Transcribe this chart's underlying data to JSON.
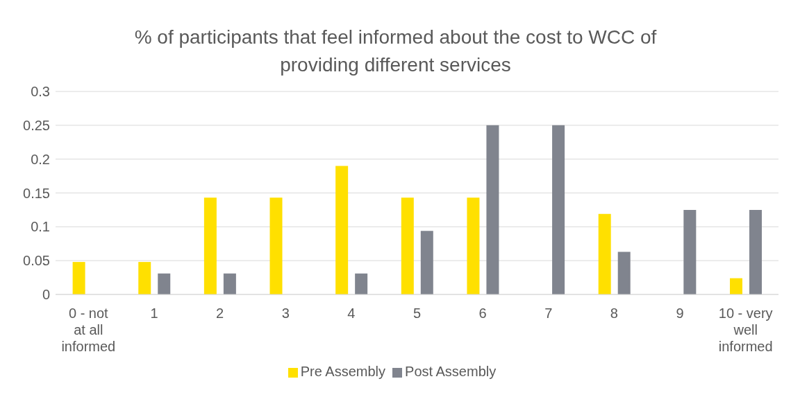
{
  "chart_data": {
    "type": "bar",
    "title": "% of participants that feel informed about the cost to WCC of providing different services",
    "categories": [
      "0 - not at all informed",
      "1",
      "2",
      "3",
      "4",
      "5",
      "6",
      "7",
      "8",
      "9",
      "10 - very well informed"
    ],
    "series": [
      {
        "name": "Pre Assembly",
        "color": "#ffe000",
        "values": [
          0.048,
          0.048,
          0.143,
          0.143,
          0.19,
          0.143,
          0.143,
          0,
          0.119,
          0,
          0.024
        ]
      },
      {
        "name": "Post Assembly",
        "color": "#80848e",
        "values": [
          0,
          0.031,
          0.031,
          0,
          0.031,
          0.094,
          0.25,
          0.25,
          0.063,
          0.125,
          0.125
        ]
      }
    ],
    "ylim": [
      0,
      0.3
    ],
    "yticks": [
      0,
      0.05,
      0.1,
      0.15,
      0.2,
      0.25,
      0.3
    ],
    "grid": "y",
    "legend": "bottom"
  }
}
